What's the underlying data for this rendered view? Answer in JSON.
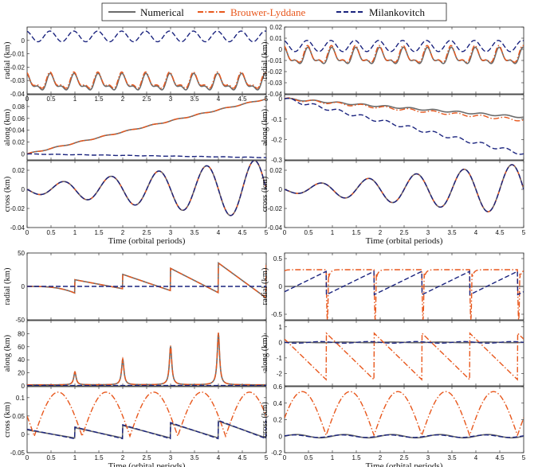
{
  "legend": {
    "entries": [
      {
        "label": "Numerical",
        "color": "#6b6b6b",
        "dash": "solid"
      },
      {
        "label": "Brouwer-Lyddane",
        "color": "#e8571c",
        "dash": "dashdot"
      },
      {
        "label": "Milankovitch",
        "color": "#1a237e",
        "dash": "dashed"
      }
    ],
    "position": "top-center"
  },
  "colors": {
    "numerical": "#6b6b6b",
    "brouwer": "#e8571c",
    "milankovitch": "#1a237e"
  },
  "chart_data": [
    {
      "type": "line",
      "panel": "top-left",
      "ylabel": "radial (km)",
      "xlabel": "",
      "ylim": [
        -0.04,
        0.01
      ],
      "yticks": [
        "0",
        "-0.01",
        "-0.02",
        "-0.03",
        "-0.04"
      ],
      "xticks": [
        "0",
        "0.5",
        "1",
        "1.5",
        "2",
        "2.5",
        "3",
        "3.5",
        "4",
        "4.5",
        "5"
      ],
      "xlim": [
        0,
        5
      ],
      "series_model": {
        "numerical": "oscillation around -0.032 amp 0.005",
        "brouwer": "oscillation around -0.031",
        "milankovitch": "oscillation around 0.003 amp 0.005"
      }
    },
    {
      "type": "line",
      "panel": "top-left",
      "ylabel": "along (km)",
      "xlabel": "",
      "ylim": [
        -0.01,
        0.1
      ],
      "yticks": [
        "0.08",
        "0.06",
        "0.04",
        "0.02",
        "0"
      ],
      "xlim": [
        0,
        5
      ],
      "series_model": {
        "numerical": "linear 0 to 0.093",
        "brouwer": "linear 0 to 0.093",
        "milankovitch": "linear 0 to -0.006"
      }
    },
    {
      "type": "line",
      "panel": "top-left",
      "ylabel": "cross (km)",
      "xlabel": "Time (orbital periods)",
      "ylim": [
        -0.04,
        0.03
      ],
      "yticks": [
        "0.02",
        "0",
        "-0.02",
        "-0.04"
      ],
      "xticks": [
        "0",
        "0.5",
        "1",
        "1.5",
        "2",
        "2.5",
        "3",
        "3.5",
        "4",
        "4.5",
        "5"
      ],
      "xlim": [
        0,
        5
      ],
      "series_model": {
        "all": "growing sinusoid amplitude to 0.03"
      }
    },
    {
      "type": "line",
      "panel": "top-right",
      "ylabel": "radial (km)",
      "xlabel": "",
      "ylim": [
        -0.04,
        0.02
      ],
      "yticks": [
        "0.02",
        "0.01",
        "0",
        "-0.01",
        "-0.02",
        "-0.03",
        "-0.04"
      ],
      "xlim": [
        0,
        5
      ],
      "series_model": {
        "numerical": "oscillation around -0.007",
        "brouwer": "oscillation around -0.006",
        "milankovitch": "oscillation around 0.002"
      }
    },
    {
      "type": "line",
      "panel": "top-right",
      "ylabel": "along (km)",
      "xlabel": "",
      "ylim": [
        -0.3,
        0.02
      ],
      "yticks": [
        "0",
        "-0.1",
        "-0.2",
        "-0.3"
      ],
      "xlim": [
        0,
        5
      ],
      "series_model": {
        "numerical": "0 to -0.09",
        "brouwer": "0 to -0.10",
        "milankovitch": "0 to -0.27 stepwise"
      }
    },
    {
      "type": "line",
      "panel": "top-right",
      "ylabel": "cross (km)",
      "xlabel": "Time (orbital periods)",
      "ylim": [
        -0.04,
        0.03
      ],
      "yticks": [
        "0.02",
        "0",
        "-0.02",
        "-0.04"
      ],
      "xticks": [
        "0",
        "0.5",
        "1",
        "1.5",
        "2",
        "2.5",
        "3",
        "3.5",
        "4",
        "4.5",
        "5"
      ],
      "xlim": [
        0,
        5
      ],
      "series_model": {
        "all": "growing sinusoid amplitude to 0.025"
      }
    },
    {
      "type": "line",
      "panel": "bottom-left",
      "ylabel": "radial (km)",
      "xlabel": "",
      "ylim": [
        -50,
        50
      ],
      "yticks": [
        "50",
        "0",
        "-50"
      ],
      "xlim": [
        0,
        5
      ],
      "series_model": {
        "numerical": "sawtooth jumps at integer periods, peaks 10,18,27,35",
        "milankovitch": "flat 0"
      }
    },
    {
      "type": "line",
      "panel": "bottom-left",
      "ylabel": "along (km)",
      "xlabel": "",
      "ylim": [
        0,
        100
      ],
      "yticks": [
        "80",
        "60",
        "40",
        "20",
        "0"
      ],
      "xlim": [
        0,
        5
      ],
      "series_model": {
        "numerical": "spikes at integer periods: 20,40,60,80",
        "milankovitch": "near 0"
      }
    },
    {
      "type": "line",
      "panel": "bottom-left",
      "ylabel": "cross (km)",
      "xlabel": "Time (orbital periods)",
      "ylim": [
        -0.05,
        0.13
      ],
      "yticks": [
        "0.1",
        "0.05",
        "0",
        "-0.05"
      ],
      "xticks": [
        "0",
        "0.5",
        "1",
        "1.5",
        "2",
        "2.5",
        "3",
        "3.5",
        "4",
        "4.5",
        "5"
      ],
      "xlim": [
        0,
        5
      ],
      "series_model": {
        "brouwer": "arches peaking 0.12",
        "numerical": "small sawtooth",
        "milankovitch": "small sawtooth"
      }
    },
    {
      "type": "line",
      "panel": "bottom-right",
      "ylabel": "radial (km)",
      "xlabel": "",
      "ylim": [
        -0.6,
        0.6
      ],
      "yticks": [
        "0.5",
        "0",
        "-0.5"
      ],
      "xlim": [
        0,
        5
      ],
      "series_model": {
        "brouwer": "plateaus 0.3 with dips to -0.6",
        "milankovitch": "dips then rise",
        "numerical": "flat 0"
      }
    },
    {
      "type": "line",
      "panel": "bottom-right",
      "ylabel": "along (km)",
      "xlabel": "",
      "ylim": [
        -2.8,
        1.4
      ],
      "yticks": [
        "1",
        "0",
        "-1",
        "-2"
      ],
      "xlim": [
        0,
        5
      ],
      "series_model": {
        "brouwer": "sawtooth descending to -2.5",
        "numerical": "near 0"
      }
    },
    {
      "type": "line",
      "panel": "bottom-right",
      "ylabel": "cross (km)",
      "xlabel": "Time (orbital periods)",
      "ylim": [
        -0.2,
        0.6
      ],
      "yticks": [
        "0.6",
        "0.4",
        "0.2",
        "0",
        "-0.2"
      ],
      "xticks": [
        "0",
        "0.5",
        "1",
        "1.5",
        "2",
        "2.5",
        "3",
        "3.5",
        "4",
        "4.5",
        "5"
      ],
      "xlim": [
        0,
        5
      ],
      "series_model": {
        "brouwer": "arches peaking 0.55",
        "numerical": "near 0"
      }
    }
  ]
}
